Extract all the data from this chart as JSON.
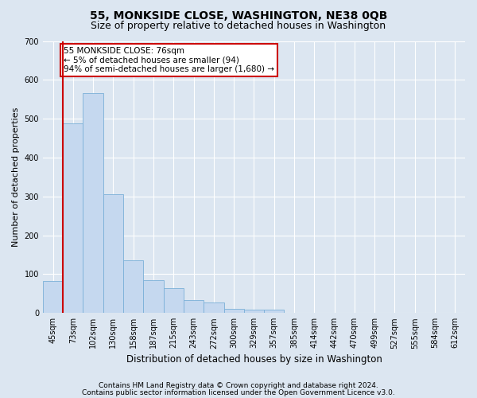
{
  "title": "55, MONKSIDE CLOSE, WASHINGTON, NE38 0QB",
  "subtitle": "Size of property relative to detached houses in Washington",
  "xlabel": "Distribution of detached houses by size in Washington",
  "ylabel": "Number of detached properties",
  "footnote1": "Contains HM Land Registry data © Crown copyright and database right 2024.",
  "footnote2": "Contains public sector information licensed under the Open Government Licence v3.0.",
  "categories": [
    "45sqm",
    "73sqm",
    "102sqm",
    "130sqm",
    "158sqm",
    "187sqm",
    "215sqm",
    "243sqm",
    "272sqm",
    "300sqm",
    "329sqm",
    "357sqm",
    "385sqm",
    "414sqm",
    "442sqm",
    "470sqm",
    "499sqm",
    "527sqm",
    "555sqm",
    "584sqm",
    "612sqm"
  ],
  "values": [
    82,
    488,
    565,
    305,
    135,
    85,
    63,
    33,
    27,
    10,
    8,
    8,
    0,
    0,
    0,
    0,
    0,
    0,
    0,
    0,
    0
  ],
  "bar_color": "#c5d8ef",
  "bar_edge_color": "#7ab0d8",
  "highlight_color": "#cc0000",
  "annotation_text": "55 MONKSIDE CLOSE: 76sqm\n← 5% of detached houses are smaller (94)\n94% of semi-detached houses are larger (1,680) →",
  "annotation_box_color": "#ffffff",
  "annotation_box_edge": "#cc0000",
  "ylim": [
    0,
    700
  ],
  "yticks": [
    0,
    100,
    200,
    300,
    400,
    500,
    600,
    700
  ],
  "background_color": "#dce6f1",
  "plot_background": "#dce6f1",
  "grid_color": "#ffffff",
  "title_fontsize": 10,
  "subtitle_fontsize": 9,
  "tick_fontsize": 7,
  "ylabel_fontsize": 8,
  "xlabel_fontsize": 8.5,
  "annotation_fontsize": 7.5,
  "footnote_fontsize": 6.5
}
